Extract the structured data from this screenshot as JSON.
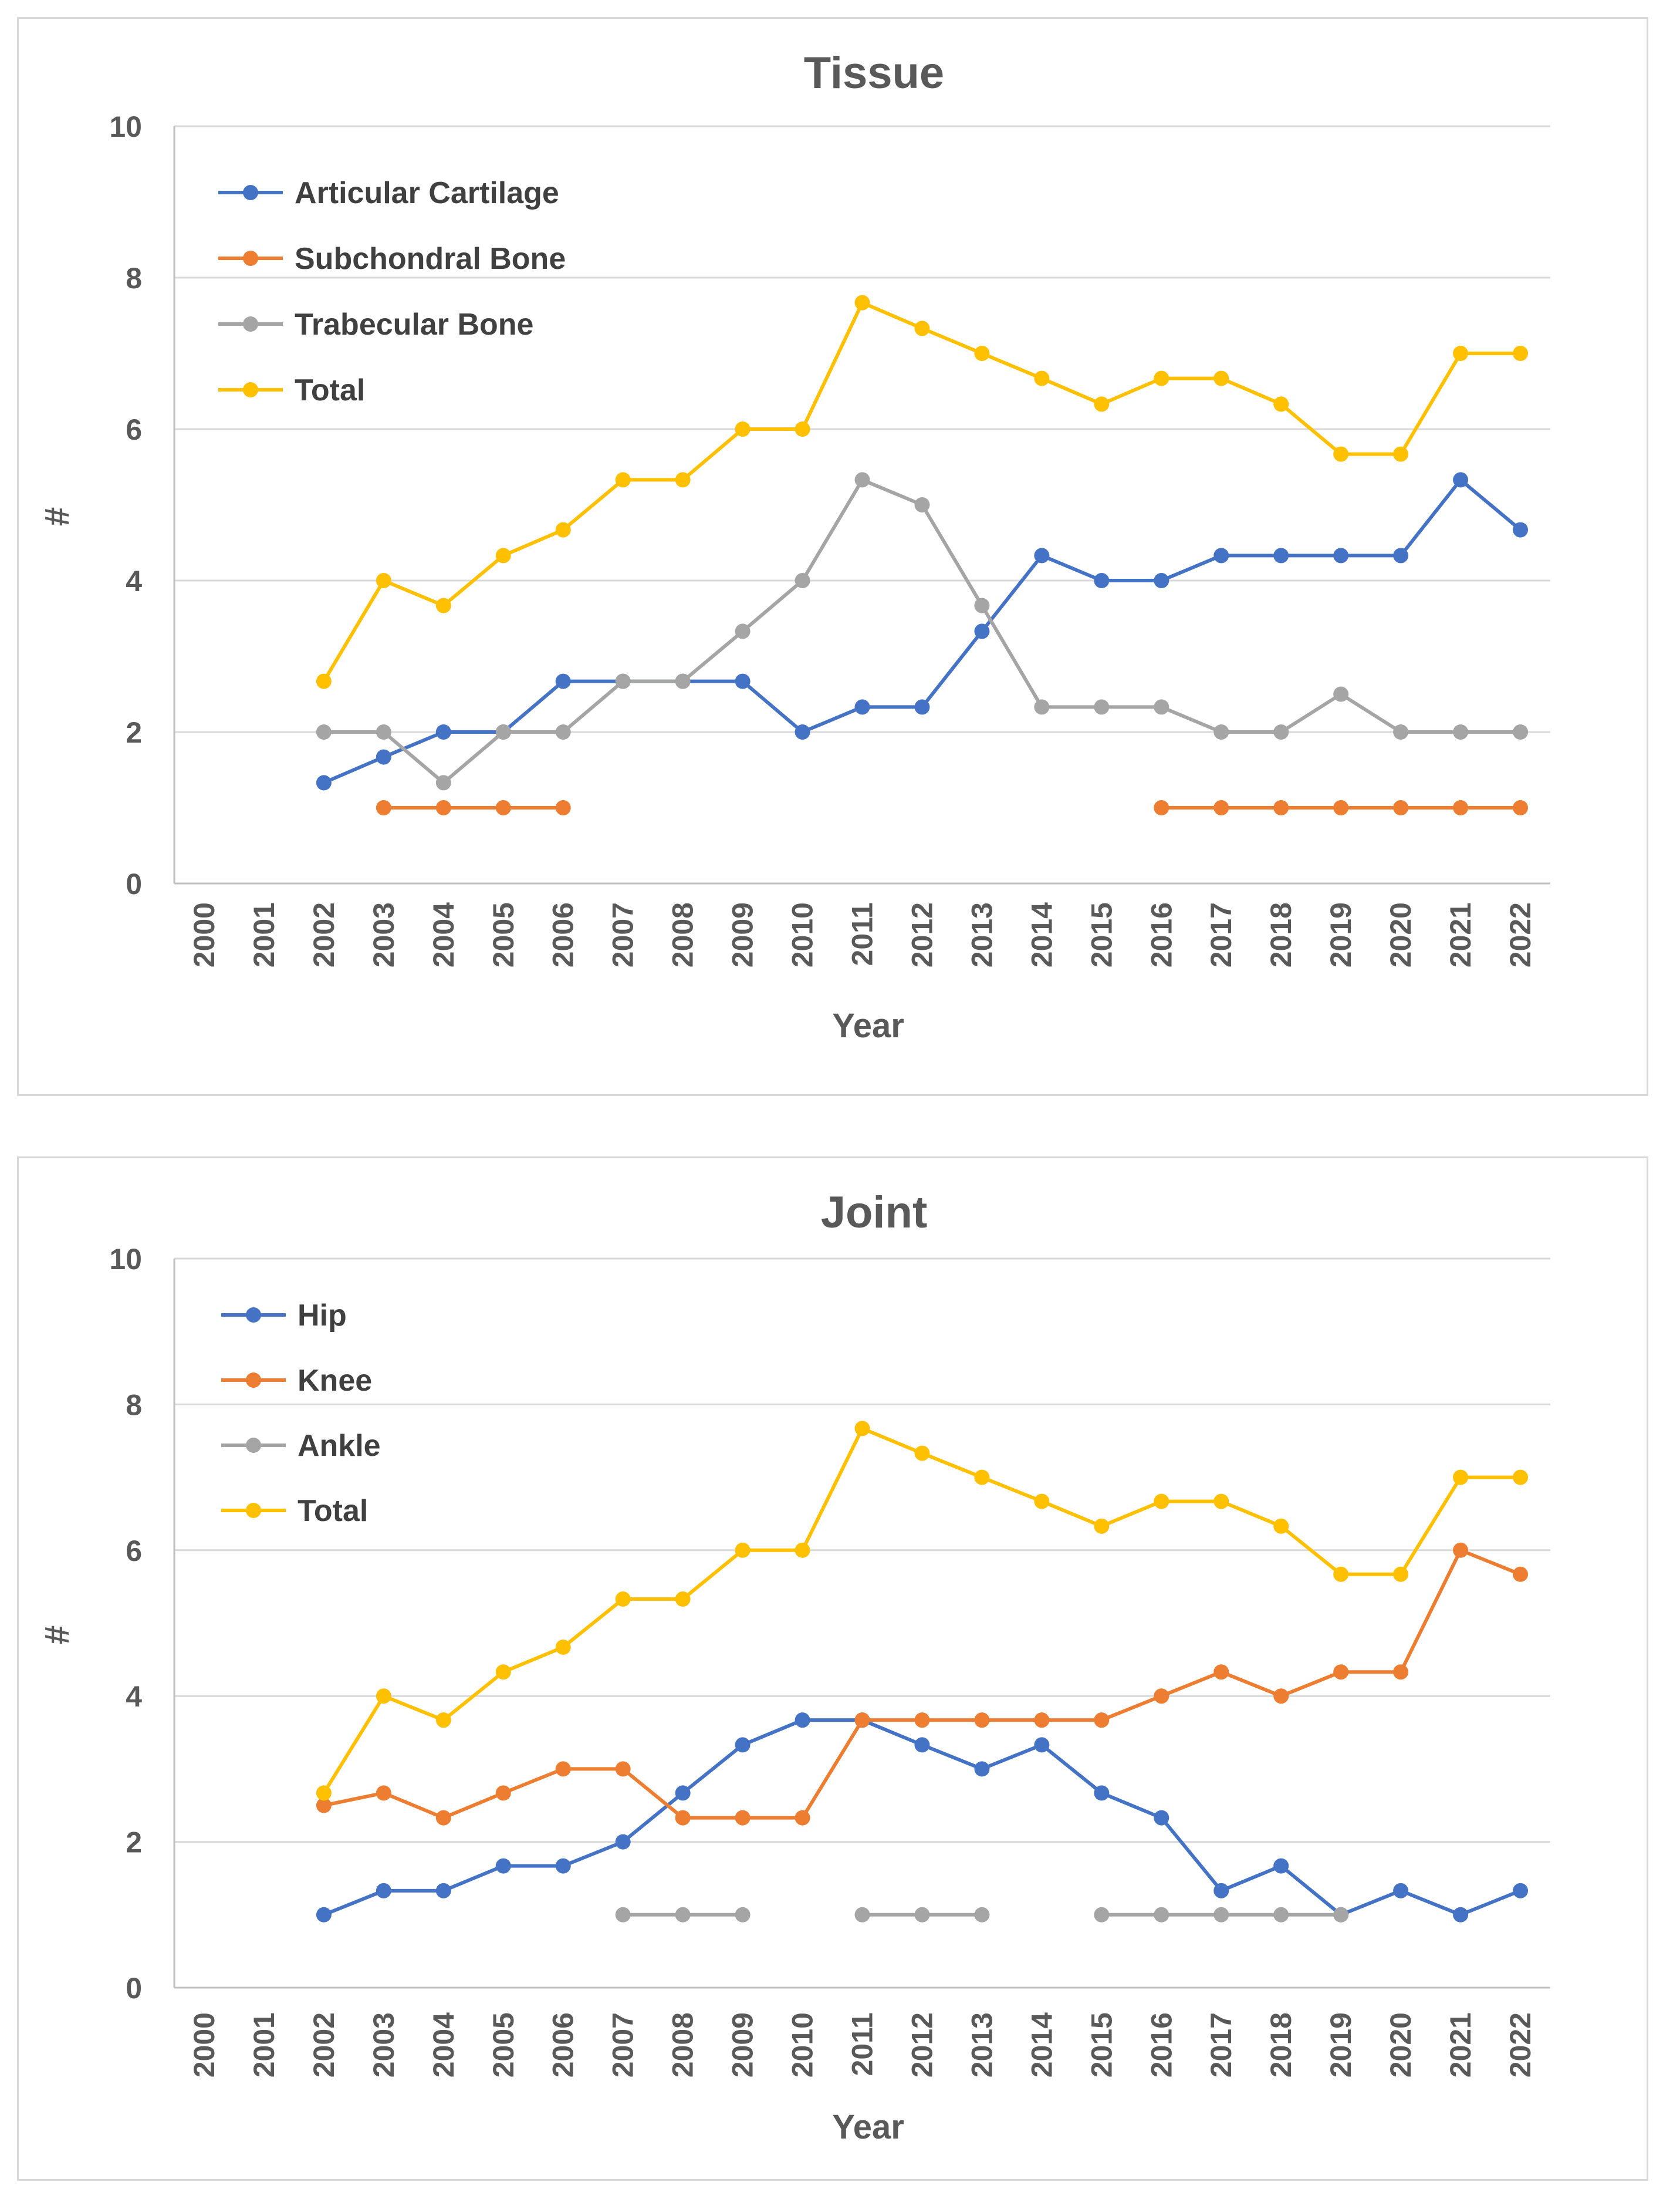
{
  "chart_data": [
    {
      "type": "line",
      "title": "Tissue",
      "xlabel": "Year",
      "ylabel": "#",
      "ylim": [
        0,
        10
      ],
      "yticks": [
        0,
        2,
        4,
        6,
        8,
        10
      ],
      "categories": [
        "2000",
        "2001",
        "2002",
        "2003",
        "2004",
        "2005",
        "2006",
        "2007",
        "2008",
        "2009",
        "2010",
        "2011",
        "2012",
        "2013",
        "2014",
        "2015",
        "2016",
        "2017",
        "2018",
        "2019",
        "2020",
        "2021",
        "2022"
      ],
      "legend_position": "top-left",
      "grid": true,
      "series": [
        {
          "name": "Articular Cartilage",
          "color": "#4472c4",
          "values": [
            null,
            null,
            1.33,
            1.67,
            2,
            2,
            2.67,
            2.67,
            2.67,
            2.67,
            2,
            2.33,
            2.33,
            3.33,
            4.33,
            4,
            4,
            4.33,
            4.33,
            4.33,
            4.33,
            5.33,
            4.67
          ]
        },
        {
          "name": "Subchondral Bone",
          "color": "#ed7d31",
          "values": [
            null,
            null,
            null,
            1,
            1,
            1,
            1,
            null,
            null,
            null,
            null,
            null,
            null,
            null,
            null,
            null,
            1,
            1,
            1,
            1,
            1,
            1,
            1
          ]
        },
        {
          "name": "Trabecular Bone",
          "color": "#a5a5a5",
          "values": [
            null,
            null,
            2,
            2,
            1.33,
            2,
            2,
            2.67,
            2.67,
            3.33,
            4,
            5.33,
            5,
            3.67,
            2.33,
            2.33,
            2.33,
            2,
            2,
            2.5,
            2,
            2,
            2
          ]
        },
        {
          "name": "Total",
          "color": "#ffc000",
          "values": [
            null,
            null,
            2.67,
            4,
            3.67,
            4.33,
            4.67,
            5.33,
            5.33,
            6,
            6,
            7.67,
            7.33,
            7,
            6.67,
            6.33,
            6.67,
            6.67,
            6.33,
            5.67,
            5.67,
            7,
            7
          ]
        }
      ]
    },
    {
      "type": "line",
      "title": "Joint",
      "xlabel": "Year",
      "ylabel": "#",
      "ylim": [
        0,
        10
      ],
      "yticks": [
        0,
        2,
        4,
        6,
        8,
        10
      ],
      "categories": [
        "2000",
        "2001",
        "2002",
        "2003",
        "2004",
        "2005",
        "2006",
        "2007",
        "2008",
        "2009",
        "2010",
        "2011",
        "2012",
        "2013",
        "2014",
        "2015",
        "2016",
        "2017",
        "2018",
        "2019",
        "2020",
        "2021",
        "2022"
      ],
      "legend_position": "top-left",
      "grid": true,
      "series": [
        {
          "name": "Hip",
          "color": "#4472c4",
          "values": [
            null,
            null,
            1,
            1.33,
            1.33,
            1.67,
            1.67,
            2,
            2.67,
            3.33,
            3.67,
            3.67,
            3.33,
            3,
            3.33,
            2.67,
            2.33,
            1.33,
            1.67,
            1,
            1.33,
            1,
            1.33
          ]
        },
        {
          "name": "Knee",
          "color": "#ed7d31",
          "values": [
            null,
            null,
            2.5,
            2.67,
            2.33,
            2.67,
            3,
            3,
            2.33,
            2.33,
            2.33,
            3.67,
            3.67,
            3.67,
            3.67,
            3.67,
            4,
            4.33,
            4,
            4.33,
            4.33,
            6,
            5.67
          ]
        },
        {
          "name": "Ankle",
          "color": "#a5a5a5",
          "values": [
            null,
            null,
            null,
            null,
            null,
            null,
            null,
            1,
            1,
            1,
            null,
            1,
            1,
            1,
            null,
            1,
            1,
            1,
            1,
            1,
            null,
            null,
            null
          ]
        },
        {
          "name": "Total",
          "color": "#ffc000",
          "values": [
            null,
            null,
            2.67,
            4,
            3.67,
            4.33,
            4.67,
            5.33,
            5.33,
            6,
            6,
            7.67,
            7.33,
            7,
            6.67,
            6.33,
            6.67,
            6.67,
            6.33,
            5.67,
            5.67,
            7,
            7
          ]
        }
      ]
    }
  ]
}
